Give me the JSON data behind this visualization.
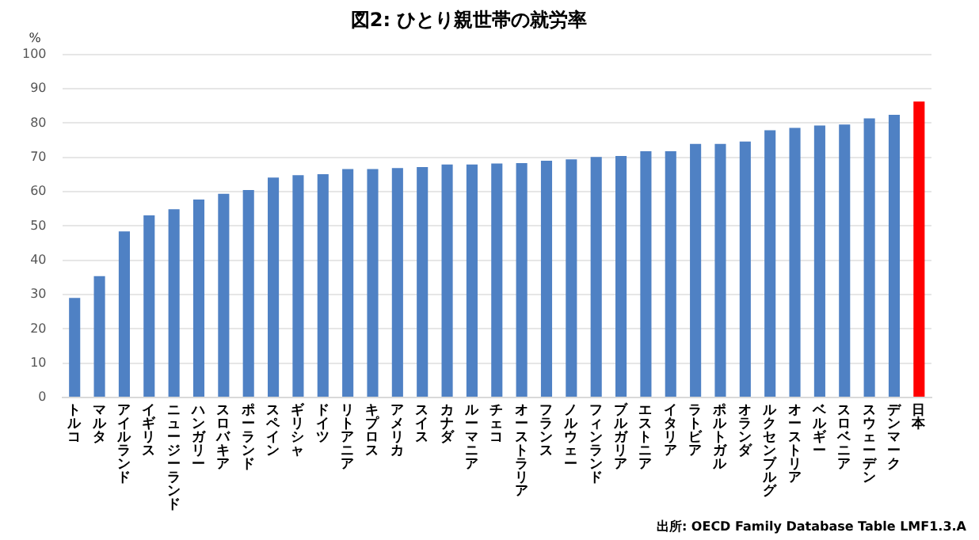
{
  "chart_data": {
    "type": "bar",
    "title": "図2: ひとり親世帯の就労率",
    "ylabel": "%",
    "categories": [
      "トルコ",
      "マルタ",
      "アイルランド",
      "イギリス",
      "ニュージーランド",
      "ハンガリー",
      "スロバキア",
      "ポーランド",
      "スペイン",
      "ギリシャ",
      "ドイツ",
      "リトアニア",
      "キプロス",
      "アメリカ",
      "スイス",
      "カナダ",
      "ルーマニア",
      "チェコ",
      "オーストラリア",
      "フランス",
      "ノルウェー",
      "フィンランド",
      "ブルガリア",
      "エストニア",
      "イタリア",
      "ラトビア",
      "ポルトガル",
      "オランダ",
      "ルクセンブルグ",
      "オーストリア",
      "ベルギー",
      "スロベニア",
      "スウェーデン",
      "デンマーク",
      "日本"
    ],
    "values": [
      29,
      35.4,
      48.4,
      53.1,
      54.9,
      57.7,
      59.4,
      60.5,
      64.1,
      64.8,
      65.1,
      66.6,
      66.6,
      66.9,
      67.2,
      67.9,
      67.9,
      68.2,
      68.3,
      69,
      69.4,
      70.1,
      70.4,
      71.8,
      71.8,
      73.9,
      73.9,
      74.6,
      77.9,
      78.6,
      79.3,
      79.6,
      81.4,
      82.4,
      86.3
    ],
    "colors": [
      "#4f81c4",
      "#4f81c4",
      "#4f81c4",
      "#4f81c4",
      "#4f81c4",
      "#4f81c4",
      "#4f81c4",
      "#4f81c4",
      "#4f81c4",
      "#4f81c4",
      "#4f81c4",
      "#4f81c4",
      "#4f81c4",
      "#4f81c4",
      "#4f81c4",
      "#4f81c4",
      "#4f81c4",
      "#4f81c4",
      "#4f81c4",
      "#4f81c4",
      "#4f81c4",
      "#4f81c4",
      "#4f81c4",
      "#4f81c4",
      "#4f81c4",
      "#4f81c4",
      "#4f81c4",
      "#4f81c4",
      "#4f81c4",
      "#4f81c4",
      "#4f81c4",
      "#4f81c4",
      "#4f81c4",
      "#4f81c4",
      "#ff0000"
    ],
    "ylim": [
      0,
      100
    ],
    "yticks": [
      0,
      10,
      20,
      30,
      40,
      50,
      60,
      70,
      80,
      90,
      100
    ],
    "grid": "y",
    "legend": false,
    "annotations": [
      "出所: OECD Family Database Table LMF1.3.A"
    ]
  }
}
